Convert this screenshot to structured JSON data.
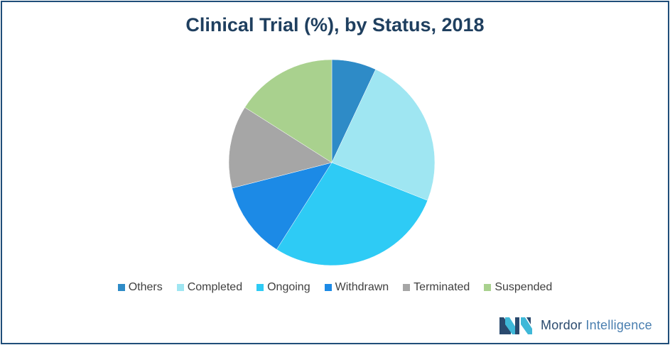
{
  "chart_data": {
    "type": "pie",
    "title": "Clinical Trial (%), by Status, 2018",
    "categories": [
      "Others",
      "Completed",
      "Ongoing",
      "Withdrawn",
      "Terminated",
      "Suspended"
    ],
    "values": [
      7,
      24,
      28,
      12,
      13,
      16
    ],
    "colors": [
      "#2e8bc7",
      "#9fe6f2",
      "#2ecbf5",
      "#1c8ae6",
      "#a6a6a6",
      "#a9d18e"
    ],
    "legend_position": "bottom",
    "start_angle": "12 o'clock",
    "direction": "clockwise"
  },
  "brand": {
    "name_bold": "Mordor",
    "name_light": "Intelligence",
    "logo_icon": "mordor-intelligence-logo-icon"
  }
}
